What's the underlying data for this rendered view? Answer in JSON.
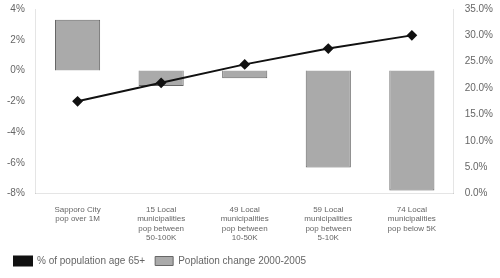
{
  "chart_data": {
    "type": "bar",
    "categories": [
      "Sapporo City\npop over 1M",
      "15 Local\nmunicipalities\npop between\n50-100K",
      "49 Local\nmunicipalities\npop between\n10-50K",
      "59 Local\nmunicipalities\npop between\n5-10K",
      "74 Local\nmunicipalities\npop below 5K"
    ],
    "series": [
      {
        "name": "Poplation change 2000-2005",
        "type": "bar",
        "color": "#aaaaaa",
        "values": [
          3.3,
          -1.0,
          -0.5,
          -6.3,
          -7.8
        ]
      },
      {
        "name": "% of population age 65+",
        "type": "line",
        "color": "#111111",
        "values": [
          17.5,
          21.0,
          24.5,
          27.5,
          30.0
        ],
        "axis": "y2",
        "marker": "diamond",
        "line_style": "solid"
      }
    ],
    "ylim": [
      -8,
      4
    ],
    "yticks": [
      {
        "value": -8,
        "label": "-8%"
      },
      {
        "value": -6,
        "label": "-6%"
      },
      {
        "value": -4,
        "label": "-4%"
      },
      {
        "value": -2,
        "label": "-2%"
      },
      {
        "value": 0,
        "label": "0%"
      },
      {
        "value": 2,
        "label": "2%"
      },
      {
        "value": 4,
        "label": "4%"
      }
    ],
    "y2lim": [
      0.0,
      35.0
    ],
    "y2ticks": [
      {
        "value": 0,
        "label": "0.0%"
      },
      {
        "value": 5,
        "label": "5.0%"
      },
      {
        "value": 10,
        "label": "10.0%"
      },
      {
        "value": 15,
        "label": "15.0%"
      },
      {
        "value": 20,
        "label": "20.0%"
      },
      {
        "value": 25,
        "label": "25.0%"
      },
      {
        "value": 30,
        "label": "30.0%"
      },
      {
        "value": 35,
        "label": "35.0%"
      }
    ],
    "grid": false,
    "legend": "lower left"
  }
}
